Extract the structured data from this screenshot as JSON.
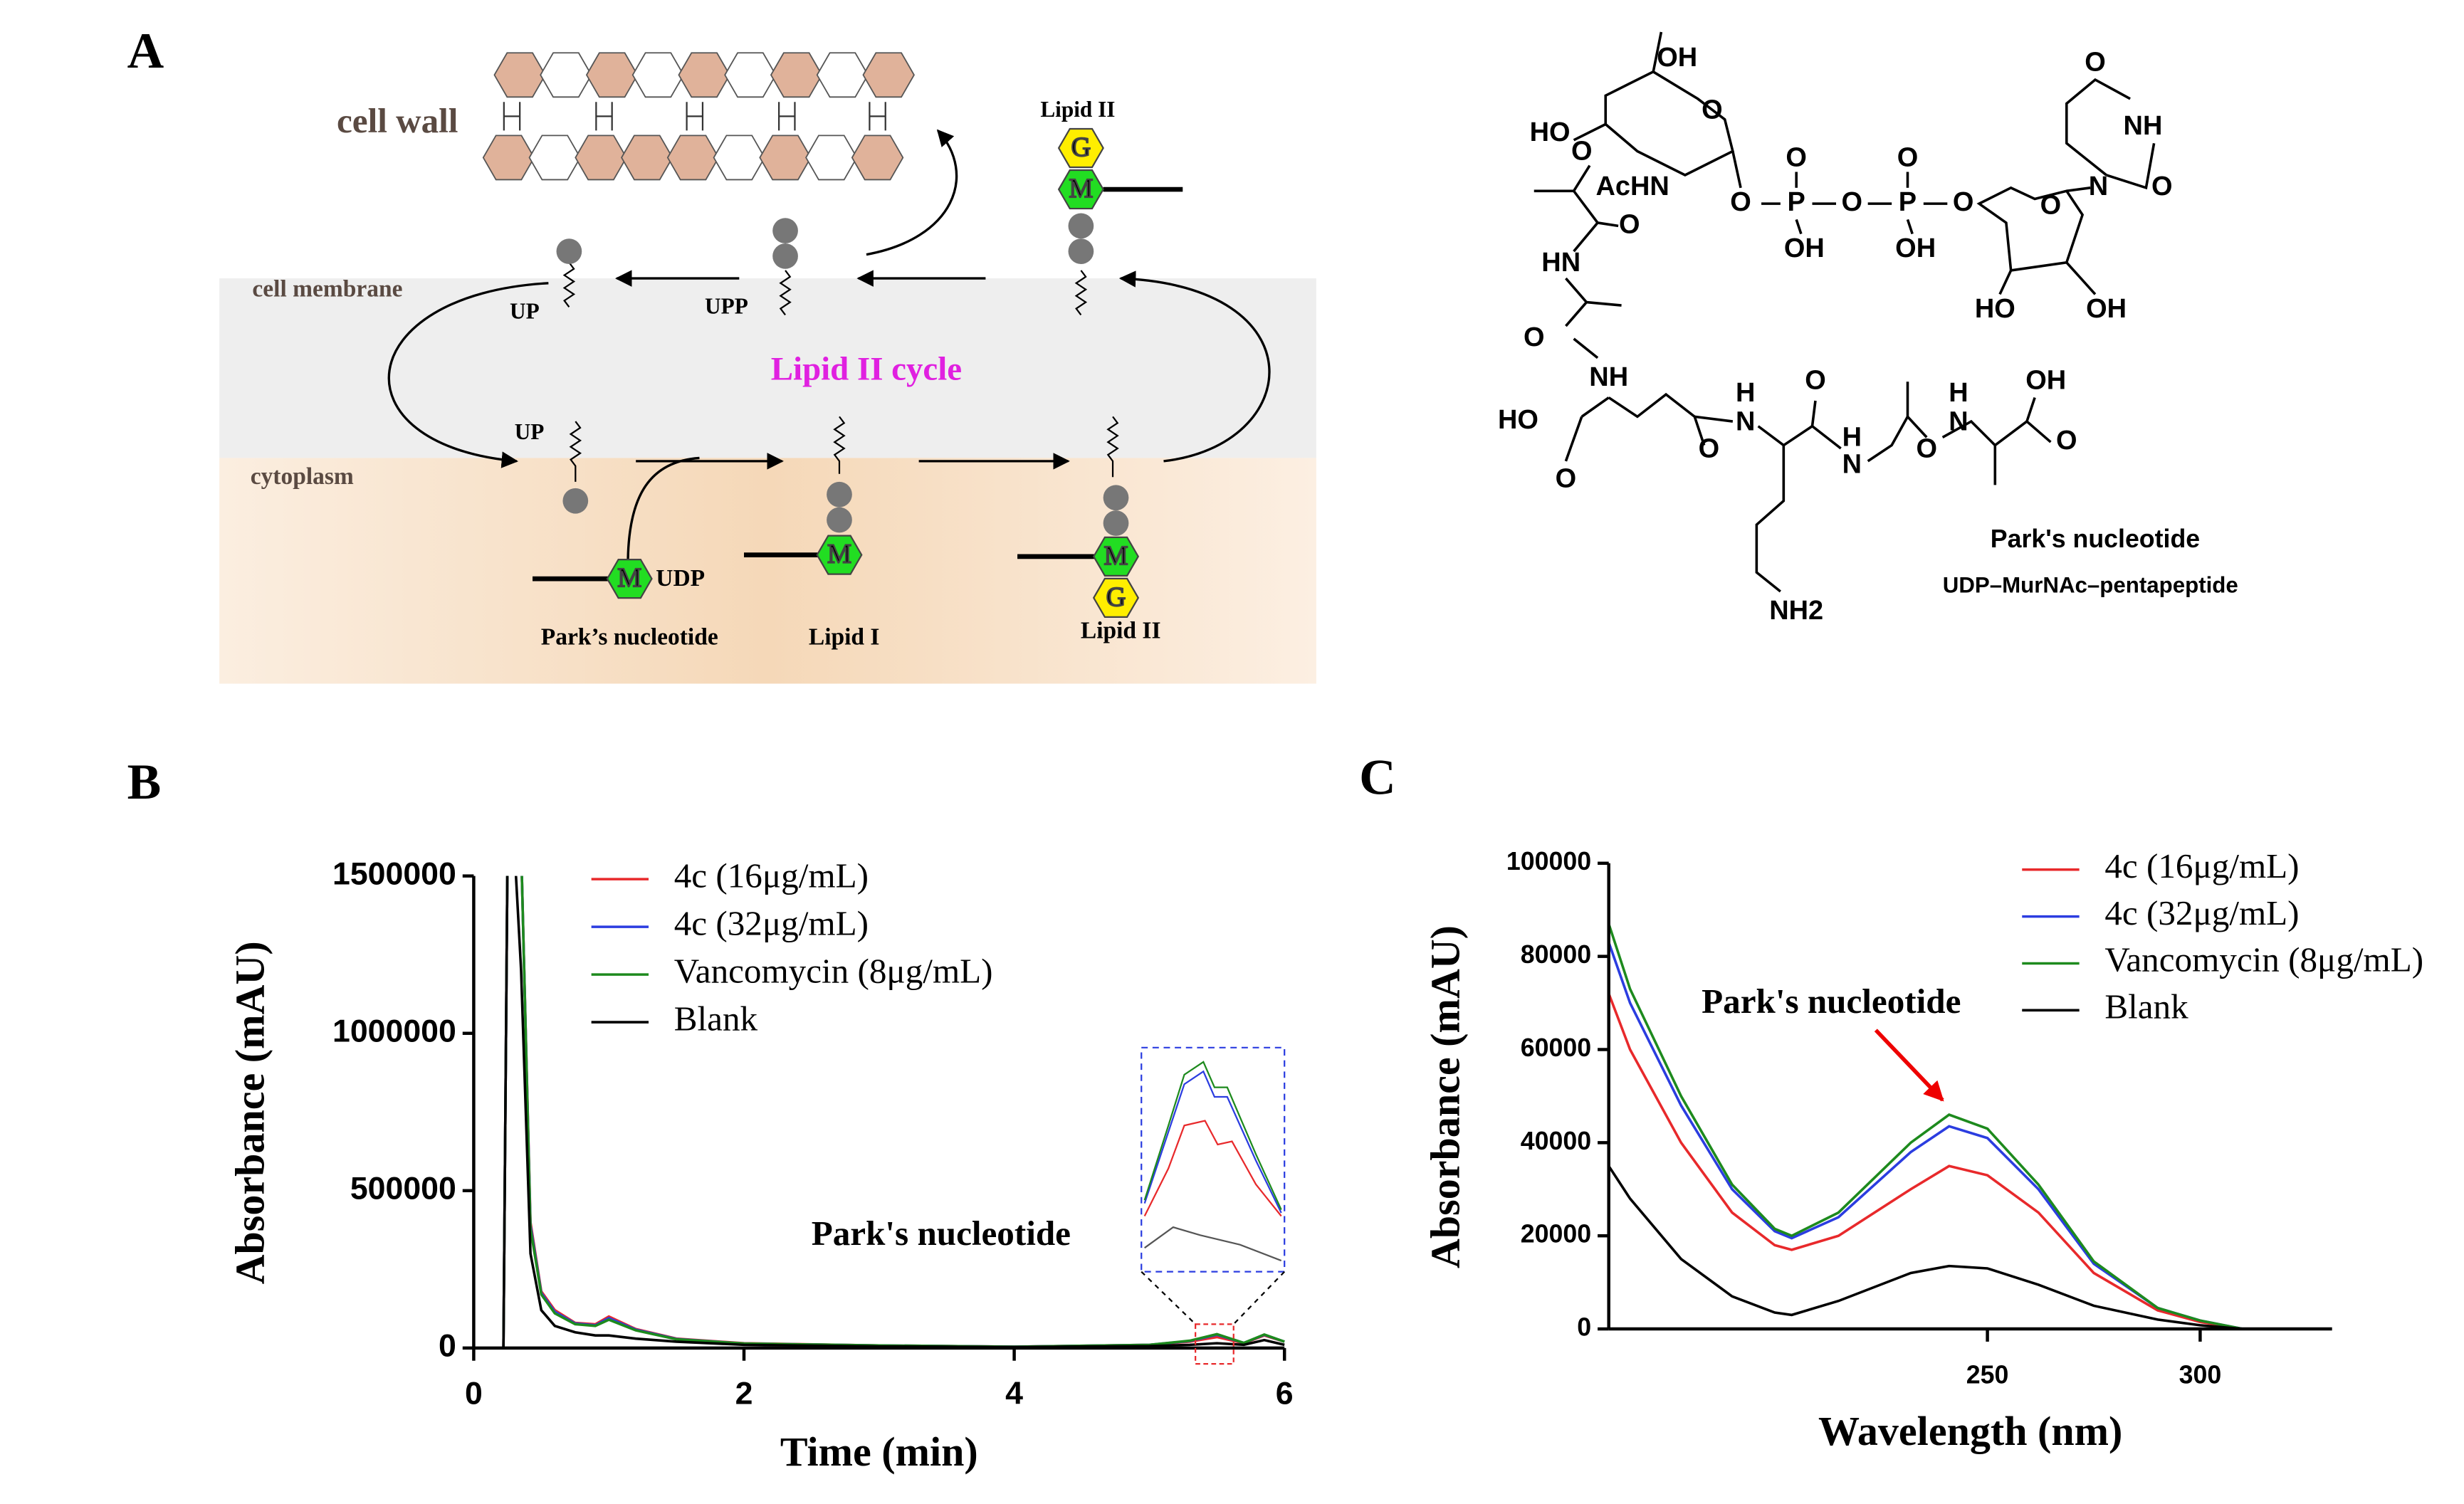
{
  "panel_labels": [
    "A",
    "B",
    "C"
  ],
  "diagram": {
    "cell_wall": "cell wall",
    "cell_membrane": "cell membrane",
    "cytoplasm": "cytoplasm",
    "cycle": "Lipid II cycle",
    "up_top": "UP",
    "upp": "UPP",
    "up_bottom": "UP",
    "lipid_ii_top": "Lipid II",
    "udp": "UDP",
    "m_label": "M",
    "g_label": "G",
    "parks": "Park’s nucleotide",
    "lipid_i": "Lipid I",
    "lipid_ii_bottom": "Lipid II"
  },
  "structure": {
    "atoms": [
      "OH",
      "HO",
      "O",
      "O",
      "AcHN",
      "O",
      "P",
      "O",
      "P",
      "O",
      "O",
      "O",
      "OH",
      "OH",
      "O",
      "N",
      "O",
      "NH",
      "O",
      "HO",
      "OH",
      "O",
      "HN",
      "O",
      "NH",
      "HO",
      "O",
      "O",
      "H",
      "N",
      "O",
      "N",
      "H",
      "O",
      "H",
      "N",
      "OH",
      "O",
      "NH2"
    ],
    "name": "Park's nucleotide",
    "subtitle": "UDP–MurNAc–pentapeptide"
  },
  "chart_data": [
    {
      "type": "line",
      "xlabel": "Time (min)",
      "ylabel": "Absorbance (mAU)",
      "annotation": "Park's nucleotide",
      "xlim": [
        0,
        6
      ],
      "xticks": [
        0,
        2,
        4,
        6
      ],
      "ylim": [
        0,
        1500000
      ],
      "yticks": [
        0,
        500000,
        1000000,
        1500000
      ],
      "x": [
        0,
        0.22,
        0.25,
        0.3,
        0.35,
        0.42,
        0.5,
        0.6,
        0.75,
        0.9,
        1.0,
        1.2,
        1.5,
        2,
        3,
        4,
        5,
        5.3,
        5.5,
        5.7,
        5.85,
        6
      ],
      "series": [
        {
          "name": "4c (16μg/mL)",
          "color": "#e8292b",
          "values": [
            0,
            0,
            1600000,
            1600000,
            1600000,
            400000,
            180000,
            120000,
            80000,
            75000,
            100000,
            60000,
            30000,
            15000,
            8000,
            4000,
            10000,
            20000,
            35000,
            15000,
            40000,
            20000
          ]
        },
        {
          "name": "4c (32μg/mL)",
          "color": "#2b3de0",
          "values": [
            0,
            0,
            1600000,
            1600000,
            1600000,
            390000,
            175000,
            115000,
            78000,
            72000,
            95000,
            58000,
            29000,
            14000,
            8000,
            4000,
            10000,
            22000,
            42000,
            16000,
            42000,
            20000
          ]
        },
        {
          "name": "Vancomycin (8μg/mL)",
          "color": "#1d8a1d",
          "values": [
            0,
            0,
            1600000,
            1600000,
            1600000,
            380000,
            170000,
            110000,
            76000,
            70000,
            90000,
            56000,
            28000,
            14000,
            8000,
            4000,
            10000,
            23000,
            44000,
            16000,
            43000,
            20000
          ]
        },
        {
          "name": "Blank",
          "color": "#000000",
          "values": [
            0,
            0,
            1600000,
            1600000,
            1200000,
            300000,
            120000,
            70000,
            50000,
            40000,
            40000,
            30000,
            20000,
            10000,
            5000,
            3000,
            6000,
            10000,
            15000,
            10000,
            25000,
            10000
          ]
        }
      ]
    },
    {
      "type": "line",
      "xlabel": "Wavelength (nm)",
      "ylabel": "Absorbance (mAU)",
      "annotation": "Park's nucleotide",
      "xlim": [
        161,
        331
      ],
      "xticks": [
        250,
        300
      ],
      "ylim": [
        0,
        100000
      ],
      "yticks": [
        0,
        20000,
        40000,
        60000,
        80000,
        100000
      ],
      "x": [
        161,
        166,
        178,
        190,
        200,
        204,
        215,
        232,
        241,
        250,
        262,
        275,
        290,
        300,
        310
      ],
      "series": [
        {
          "name": "4c (16μg/mL)",
          "color": "#e8292b",
          "values": [
            72000,
            60000,
            40000,
            25000,
            18000,
            17000,
            20000,
            30000,
            35000,
            33000,
            25000,
            12000,
            4000,
            1500,
            0
          ]
        },
        {
          "name": "4c (32μg/mL)",
          "color": "#2b3de0",
          "values": [
            83000,
            70000,
            48000,
            30000,
            21000,
            19500,
            24000,
            38000,
            43500,
            41000,
            30000,
            14000,
            4500,
            1800,
            0
          ]
        },
        {
          "name": "Vancomycin (8μg/mL)",
          "color": "#1d8a1d",
          "values": [
            87000,
            73000,
            50000,
            31000,
            21500,
            20000,
            25000,
            40000,
            46000,
            43000,
            31000,
            14500,
            4500,
            1800,
            0
          ]
        },
        {
          "name": "Blank",
          "color": "#000000",
          "values": [
            35000,
            28000,
            15000,
            7000,
            3500,
            3000,
            6000,
            12000,
            13500,
            13000,
            9500,
            5000,
            2000,
            800,
            0
          ]
        }
      ]
    }
  ]
}
